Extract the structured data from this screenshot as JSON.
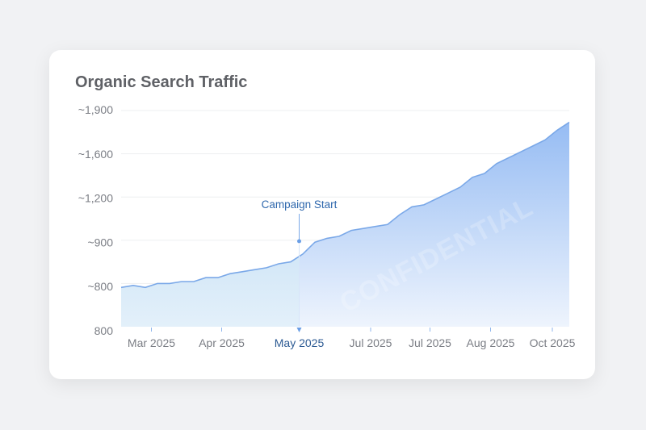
{
  "chart_data": {
    "type": "area",
    "title": "Organic Search Traffic",
    "xlabel": "",
    "ylabel": "",
    "y_tick_labels": [
      "800",
      "~800",
      "~900",
      "~1,200",
      "~1,600",
      "~1,900"
    ],
    "ylim": [
      800,
      1900
    ],
    "x_tick_labels": [
      "Mar 2025",
      "Apr 2025",
      "May 2025",
      "Jul 2025",
      "Jul 2025",
      "Aug 2025",
      "Oct 2025"
    ],
    "x_tick_at": [
      2.5,
      8.3,
      14.7,
      20.6,
      25.5,
      30.5,
      35.6
    ],
    "x": [
      0,
      1,
      2,
      3,
      4,
      5,
      6,
      7,
      8,
      9,
      10,
      11,
      12,
      13,
      14,
      15,
      16,
      17,
      18,
      19,
      20,
      21,
      22,
      23,
      24,
      25,
      26,
      27,
      28,
      29,
      30,
      31,
      32,
      33,
      34,
      35,
      36,
      37
    ],
    "values": [
      1000,
      1010,
      1000,
      1020,
      1020,
      1030,
      1030,
      1050,
      1050,
      1070,
      1080,
      1090,
      1100,
      1120,
      1130,
      1170,
      1230,
      1250,
      1260,
      1290,
      1300,
      1310,
      1320,
      1370,
      1410,
      1420,
      1450,
      1480,
      1510,
      1560,
      1580,
      1630,
      1660,
      1690,
      1720,
      1750,
      1800,
      1840
    ],
    "grid": true,
    "colors": {
      "line": "#7aa8e8",
      "fill_top": "#9dc0f4",
      "fill_bottom": "#eef4fd",
      "pre_fill": "#bfe0f4",
      "annotation": "#2f68ad"
    },
    "annotation": {
      "label": "Campaign Start",
      "at": 14.7,
      "highlight_tick": "May 2025"
    },
    "watermark": "CONFIDENTIAL"
  }
}
